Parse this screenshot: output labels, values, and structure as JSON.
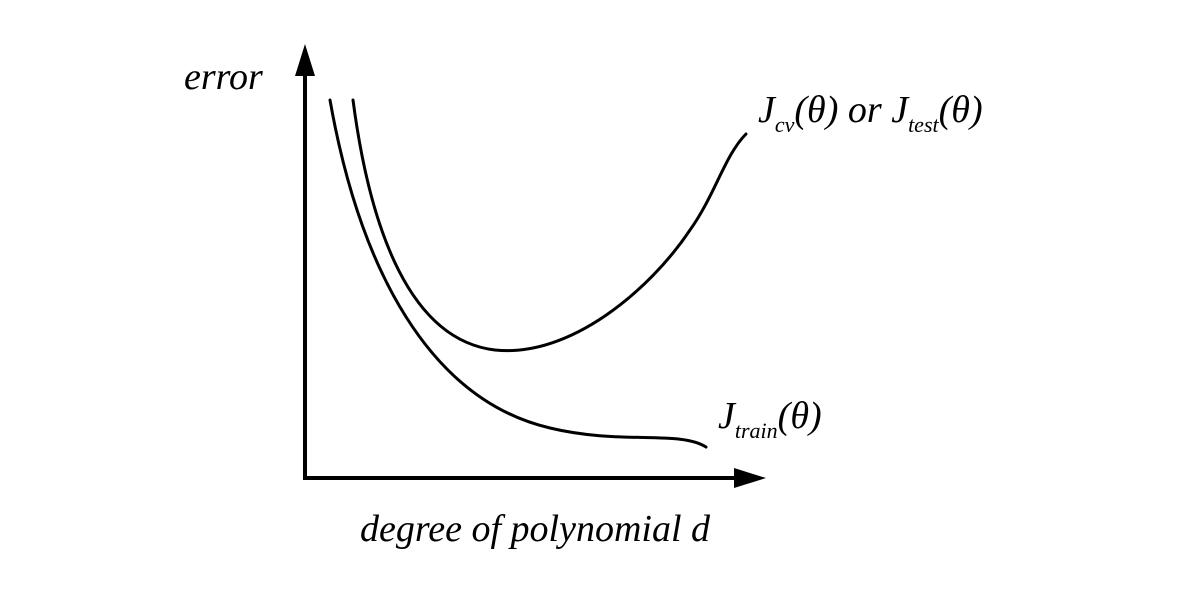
{
  "axes": {
    "y_label": "error",
    "x_label": "degree of polynomial d"
  },
  "curves": {
    "cv": {
      "name": "J",
      "sub1": "cv",
      "theta1": "(θ)",
      "connector": " or ",
      "name2": "J",
      "sub2": "test",
      "theta2": "(θ)"
    },
    "train": {
      "name": "J",
      "sub": "train",
      "theta": "(θ)"
    }
  },
  "colors": {
    "ink": "#000000",
    "background": "#ffffff"
  }
}
